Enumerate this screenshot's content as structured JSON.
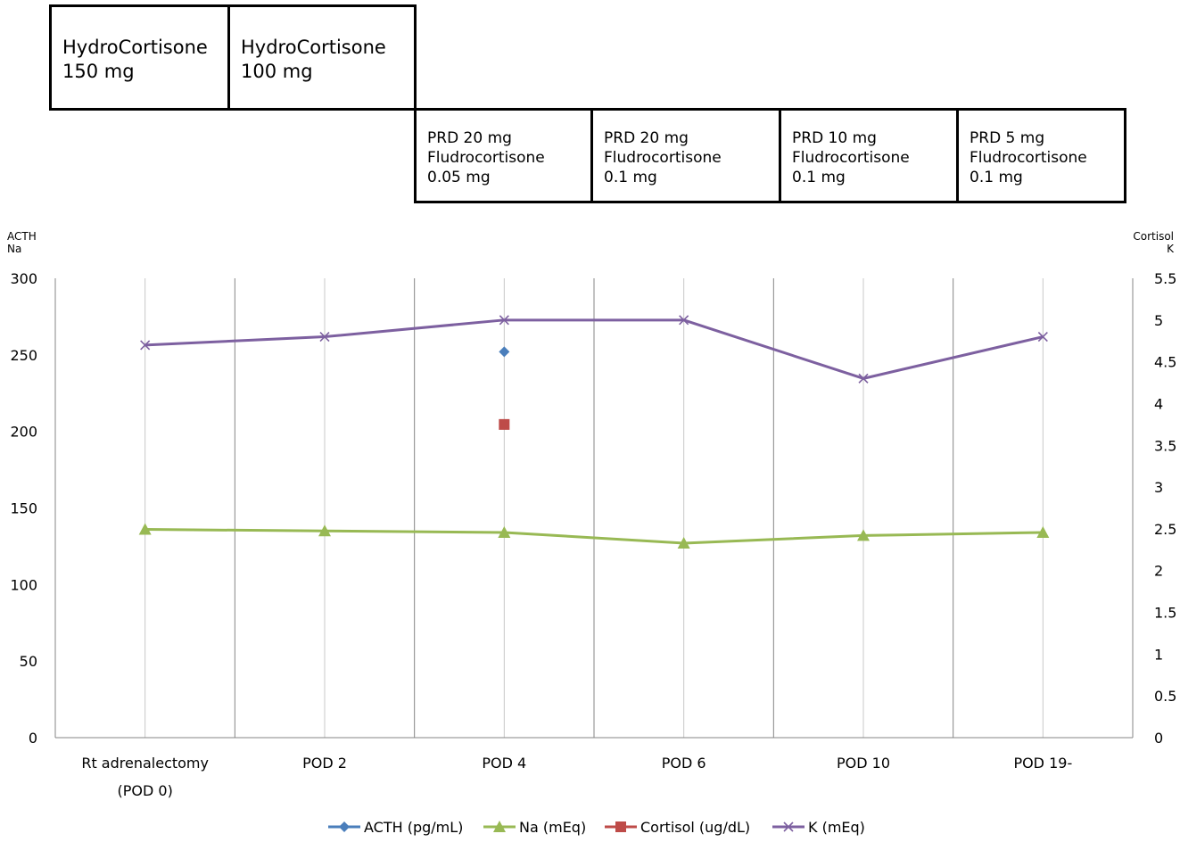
{
  "treatment_top": [
    {
      "line1": "HydroCortisone",
      "line2": "150 mg"
    },
    {
      "line1": "HydroCortisone",
      "line2": "100 mg"
    }
  ],
  "treatment_bottom": [
    {
      "line1": "PRD 20 mg",
      "line2": "Fludrocortisone",
      "line3": "0.05 mg"
    },
    {
      "line1": "PRD 20 mg",
      "line2": "Fludrocortisone",
      "line3": "0.1 mg"
    },
    {
      "line1": "PRD 10 mg",
      "line2": "Fludrocortisone",
      "line3": "0.1 mg"
    },
    {
      "line1": "PRD 5 mg",
      "line2": "Fludrocortisone",
      "line3": "0.1 mg"
    }
  ],
  "chart_data": {
    "type": "line",
    "categories": [
      [
        "Rt adrenalectomy",
        "(POD 0)"
      ],
      [
        "POD 2"
      ],
      [
        "POD 4"
      ],
      [
        "POD 6"
      ],
      [
        "POD 10"
      ],
      [
        "POD 19-"
      ]
    ],
    "left_axis": {
      "label_lines": [
        "ACTH",
        "Na"
      ],
      "min": 0,
      "max": 300,
      "step": 50,
      "ticks": [
        "0",
        "50",
        "100",
        "150",
        "200",
        "250",
        "300"
      ]
    },
    "right_axis": {
      "label_lines": [
        "Cortisol",
        "K"
      ],
      "min": 0,
      "max": 5.5,
      "step": 0.5,
      "ticks": [
        "0",
        "0.5",
        "1",
        "1.5",
        "2",
        "2.5",
        "3",
        "3.5",
        "4",
        "4.5",
        "5",
        "5.5"
      ]
    },
    "series": [
      {
        "name": "ACTH (pg/mL)",
        "axis": "left",
        "marker": "diamond",
        "color": "#4a7ebb",
        "values": [
          null,
          null,
          252,
          null,
          null,
          null
        ]
      },
      {
        "name": "Na (mEq)",
        "axis": "left",
        "marker": "triangle",
        "color": "#98b954",
        "values": [
          136,
          135,
          134,
          127,
          132,
          134
        ]
      },
      {
        "name": "Cortisol (ug/dL)",
        "axis": "right",
        "marker": "square",
        "color": "#be4b48",
        "values": [
          null,
          null,
          3.75,
          null,
          null,
          null
        ]
      },
      {
        "name": "K (mEq)",
        "axis": "right",
        "marker": "x",
        "color": "#7d60a0",
        "values": [
          4.7,
          4.8,
          5.0,
          5.0,
          4.3,
          4.8
        ]
      }
    ],
    "grid": "vertical",
    "legend": "bottom"
  }
}
